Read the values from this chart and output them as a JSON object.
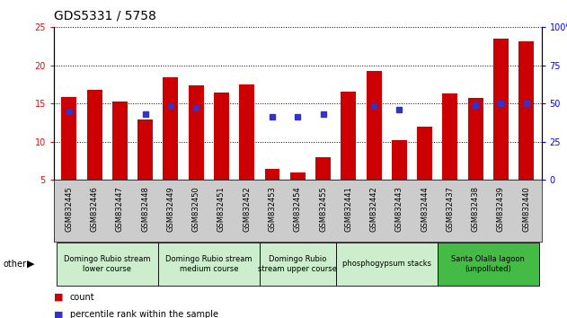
{
  "title": "GDS5331 / 5758",
  "samples": [
    "GSM832445",
    "GSM832446",
    "GSM832447",
    "GSM832448",
    "GSM832449",
    "GSM832450",
    "GSM832451",
    "GSM832452",
    "GSM832453",
    "GSM832454",
    "GSM832455",
    "GSM832441",
    "GSM832442",
    "GSM832443",
    "GSM832444",
    "GSM832437",
    "GSM832438",
    "GSM832439",
    "GSM832440"
  ],
  "counts": [
    15.8,
    16.8,
    15.3,
    12.9,
    18.4,
    17.4,
    16.4,
    17.5,
    6.4,
    5.9,
    7.9,
    16.5,
    19.2,
    10.2,
    11.9,
    16.3,
    15.7,
    23.5,
    23.1
  ],
  "percentile_ranks": [
    45,
    null,
    null,
    43,
    48,
    47,
    null,
    null,
    41,
    41,
    43,
    null,
    48,
    46,
    null,
    null,
    49,
    50,
    50
  ],
  "ylim_left": [
    5,
    25
  ],
  "ylim_right": [
    0,
    100
  ],
  "yticks_left": [
    5,
    10,
    15,
    20,
    25
  ],
  "yticks_right": [
    0,
    25,
    50,
    75,
    100
  ],
  "bar_color": "#CC0000",
  "dot_color": "#3333CC",
  "groups": [
    {
      "label": "Domingo Rubio stream\nlower course",
      "start": 0,
      "end": 4
    },
    {
      "label": "Domingo Rubio stream\nmedium course",
      "start": 4,
      "end": 8
    },
    {
      "label": "Domingo Rubio\nstream upper course",
      "start": 8,
      "end": 11
    },
    {
      "label": "phosphogypsum stacks",
      "start": 11,
      "end": 15
    },
    {
      "label": "Santa Olalla lagoon\n(unpolluted)",
      "start": 15,
      "end": 19
    }
  ],
  "group_colors": [
    "#CCEECC",
    "#CCEECC",
    "#CCEECC",
    "#CCEECC",
    "#44BB44"
  ],
  "legend_count_label": "count",
  "legend_percentile_label": "percentile rank within the sample",
  "other_label": "other",
  "xlabel_bg": "#CCCCCC",
  "bar_width": 0.6,
  "title_fontsize": 10,
  "axis_fontsize": 7,
  "label_fontsize": 6,
  "group_fontsize": 6
}
